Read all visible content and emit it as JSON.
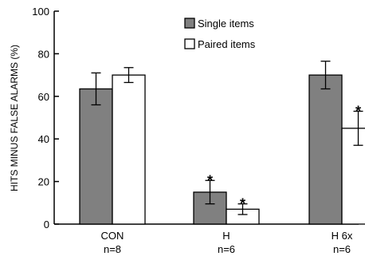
{
  "chart_data": {
    "type": "bar",
    "ylabel": "HITS MINUS FALSE ALARMS (%)",
    "xlabel": "",
    "ylim": [
      0,
      100
    ],
    "yticks": [
      0,
      20,
      40,
      60,
      80,
      100
    ],
    "legend_position": "top-center",
    "categories": [
      {
        "name": "CON",
        "n": "n=8"
      },
      {
        "name": "H",
        "n": "n=6"
      },
      {
        "name": "H 6x",
        "n": "n=6"
      }
    ],
    "series": [
      {
        "name": "Single items",
        "color": "#808080",
        "values": [
          63.5,
          15,
          70
        ],
        "errors": [
          7.5,
          5.5,
          6.5
        ],
        "significance": [
          "",
          "*",
          ""
        ]
      },
      {
        "name": "Paired items",
        "color": "#ffffff",
        "values": [
          70,
          7,
          45
        ],
        "errors": [
          3.5,
          2.5,
          8
        ],
        "significance": [
          "",
          "*",
          "*"
        ]
      }
    ]
  }
}
